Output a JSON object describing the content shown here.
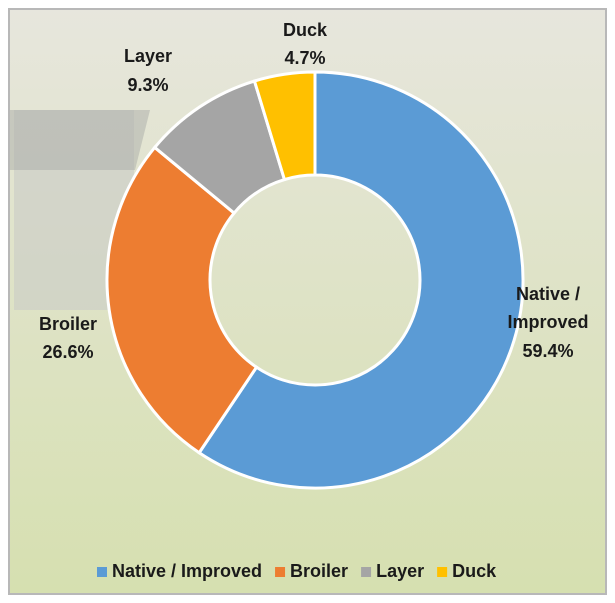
{
  "chart_data": {
    "type": "donut",
    "categories": [
      "Native / Improved",
      "Broiler",
      "Layer",
      "Duck"
    ],
    "values": [
      59.4,
      26.6,
      9.3,
      4.7
    ],
    "value_labels": [
      "59.4%",
      "26.6%",
      "9.3%",
      "4.7%"
    ],
    "colors": [
      "#5b9bd5",
      "#ed7d31",
      "#a5a5a5",
      "#ffc000"
    ],
    "legend": "bottom"
  }
}
